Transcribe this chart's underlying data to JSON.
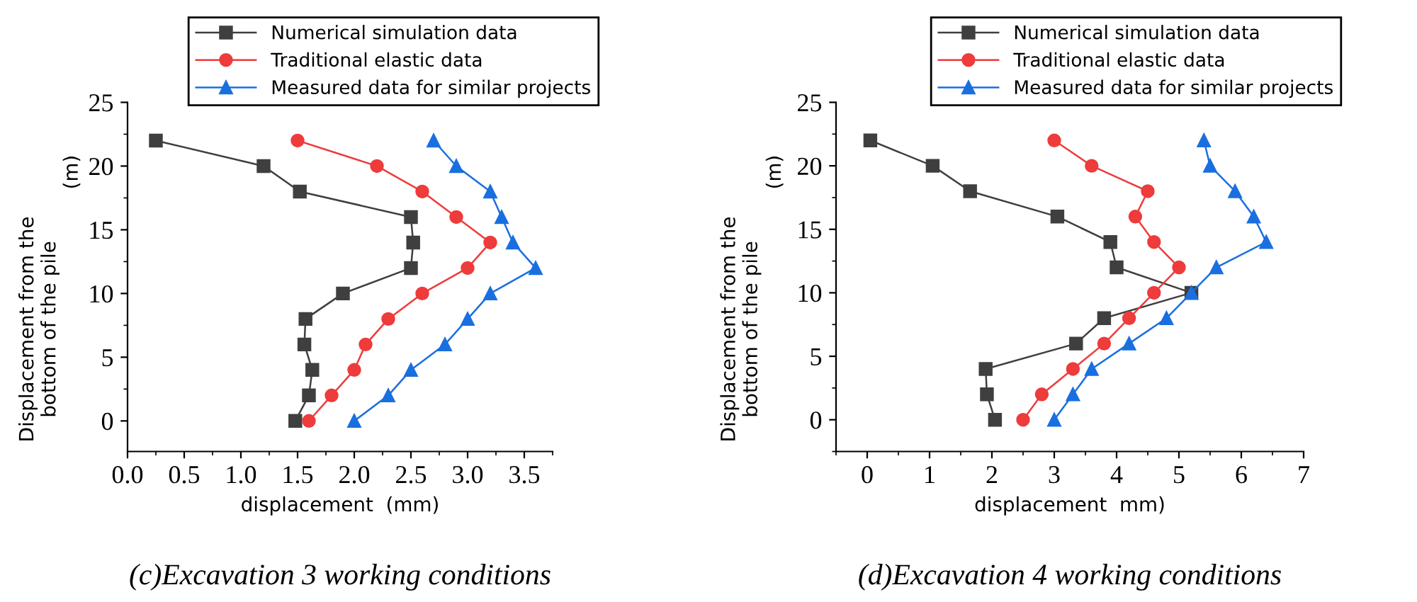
{
  "chart_data": [
    {
      "type": "line",
      "xlabel": "displacement  (mm)",
      "ylabel": "Displacement from the\nbottom of the pile",
      "annotations": [
        "(m)",
        "(c)Excavation 3 working conditions"
      ],
      "xlim": [
        0,
        3.75
      ],
      "xticks": [
        {
          "value": 0,
          "label": "0.0"
        },
        {
          "value": 0.5,
          "label": "0.5"
        },
        {
          "value": 1,
          "label": "1.0"
        },
        {
          "value": 1.5,
          "label": "1.5"
        },
        {
          "value": 2,
          "label": "2.0"
        },
        {
          "value": 2.5,
          "label": "2.5"
        },
        {
          "value": 3,
          "label": "3.0"
        },
        {
          "value": 3.5,
          "label": "3.5"
        }
      ],
      "ylim": [
        -2.4,
        25
      ],
      "yticks": [
        0,
        5,
        10,
        15,
        20,
        25
      ],
      "grid": false,
      "legend": "top right",
      "line_style": "solid",
      "series": [
        {
          "name": "Numerical simulation data",
          "color": "#3f3f3f",
          "marker": "square",
          "x": [
            0.25,
            1.2,
            1.52,
            2.5,
            2.52,
            2.5,
            1.9,
            1.57,
            1.56,
            1.63,
            1.6,
            1.48
          ],
          "values": [
            22,
            20,
            18,
            16,
            14,
            12,
            10,
            8,
            6,
            4,
            2,
            0
          ]
        },
        {
          "name": "Traditional elastic data",
          "color": "#ee3b3b",
          "marker": "circle",
          "x": [
            1.5,
            2.2,
            2.6,
            2.9,
            3.2,
            3.0,
            2.6,
            2.3,
            2.1,
            2.0,
            1.8,
            1.6
          ],
          "values": [
            22,
            20,
            18,
            16,
            14,
            12,
            10,
            8,
            6,
            4,
            2,
            0
          ]
        },
        {
          "name": "Measured data for similar projects",
          "color": "#1a6fe0",
          "marker": "triangle",
          "x": [
            2.7,
            2.9,
            3.2,
            3.3,
            3.4,
            3.6,
            3.2,
            3.0,
            2.8,
            2.5,
            2.3,
            2.0
          ],
          "values": [
            22,
            20,
            18,
            16,
            14,
            12,
            10,
            8,
            6,
            4,
            2,
            0
          ]
        }
      ]
    },
    {
      "type": "line",
      "xlabel": "displacement  mm)",
      "ylabel": "Displacement from the\nbottom of the pile",
      "annotations": [
        "(m)",
        "(d)Excavation 4 working conditions"
      ],
      "xlim": [
        -0.5,
        7
      ],
      "xticks": [
        0,
        1,
        2,
        3,
        4,
        5,
        6,
        7
      ],
      "ylim": [
        -2.5,
        25
      ],
      "yticks": [
        0,
        5,
        10,
        15,
        20,
        25
      ],
      "grid": false,
      "legend": "top right",
      "line_style": "solid",
      "series": [
        {
          "name": "Numerical simulation data",
          "color": "#3f3f3f",
          "marker": "square",
          "x": [
            0.05,
            1.05,
            1.65,
            3.05,
            3.9,
            4.0,
            5.2,
            3.8,
            3.35,
            1.9,
            1.92,
            2.05
          ],
          "values": [
            22,
            20,
            18,
            16,
            14,
            12,
            10,
            8,
            6,
            4,
            2,
            0
          ]
        },
        {
          "name": "Traditional elastic data",
          "color": "#ee3b3b",
          "marker": "circle",
          "x": [
            3.0,
            3.6,
            4.5,
            4.3,
            4.6,
            5.0,
            4.6,
            4.2,
            3.8,
            3.3,
            2.8,
            2.5
          ],
          "values": [
            22,
            20,
            18,
            16,
            14,
            12,
            10,
            8,
            6,
            4,
            2,
            0
          ]
        },
        {
          "name": "Measured data for similar projects",
          "color": "#1a6fe0",
          "marker": "triangle",
          "x": [
            5.4,
            5.5,
            5.9,
            6.2,
            6.4,
            5.6,
            5.2,
            4.8,
            4.2,
            3.6,
            3.3,
            3.0
          ],
          "values": [
            22,
            20,
            18,
            16,
            14,
            12,
            10,
            8,
            6,
            4,
            2,
            0
          ]
        }
      ]
    }
  ]
}
